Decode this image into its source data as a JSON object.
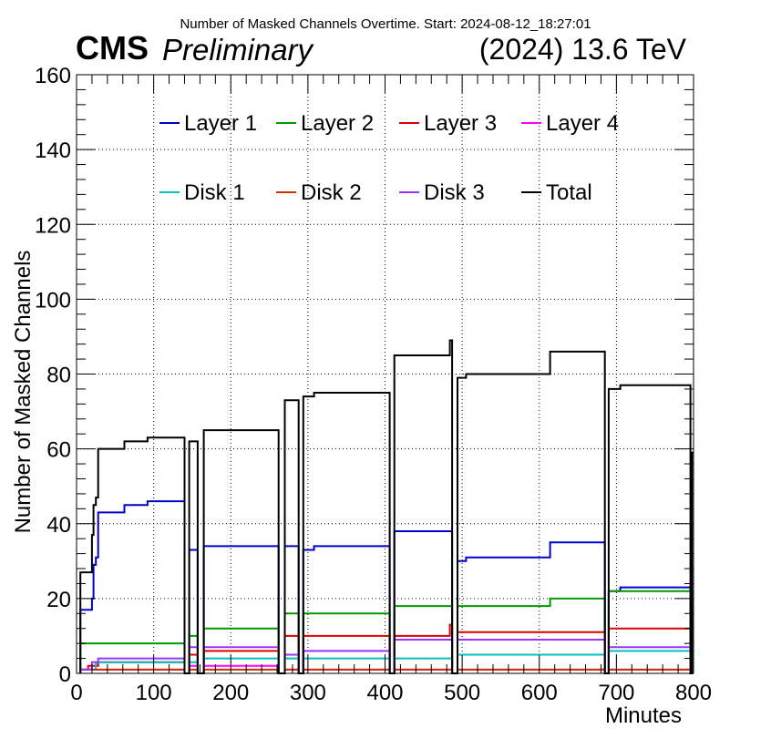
{
  "header": {
    "title": "Number of Masked Channels Overtime. Start: 2024-08-12_18:27:01",
    "experiment": "CMS",
    "status": "Preliminary",
    "energy": "(2024) 13.6 TeV"
  },
  "chart_data": {
    "type": "line",
    "title": "Number of Masked Channels Overtime. Start: 2024-08-12_18:27:01",
    "xlabel": "Minutes",
    "ylabel": "Number of Masked Channels",
    "xlim": [
      0,
      800
    ],
    "ylim": [
      0,
      160
    ],
    "xticks": [
      0,
      100,
      200,
      300,
      400,
      500,
      600,
      700,
      800
    ],
    "yticks": [
      0,
      20,
      40,
      60,
      80,
      100,
      120,
      140,
      160
    ],
    "grid": true,
    "legend_position": "top",
    "series": [
      {
        "name": "Layer 1",
        "color": "#0000cc",
        "points": [
          [
            5,
            0
          ],
          [
            5,
            17
          ],
          [
            20,
            17
          ],
          [
            20,
            20
          ],
          [
            22,
            20
          ],
          [
            22,
            29
          ],
          [
            25,
            29
          ],
          [
            25,
            31
          ],
          [
            28,
            31
          ],
          [
            28,
            43
          ],
          [
            62,
            43
          ],
          [
            62,
            45
          ],
          [
            92,
            45
          ],
          [
            92,
            46
          ],
          [
            140,
            46
          ],
          [
            140,
            0
          ],
          [
            146,
            0
          ],
          [
            146,
            33
          ],
          [
            157,
            33
          ],
          [
            157,
            0
          ],
          [
            165,
            0
          ],
          [
            165,
            34
          ],
          [
            262,
            34
          ],
          [
            262,
            0
          ],
          [
            270,
            0
          ],
          [
            270,
            34
          ],
          [
            288,
            34
          ],
          [
            288,
            0
          ],
          [
            294,
            0
          ],
          [
            294,
            33
          ],
          [
            308,
            33
          ],
          [
            308,
            34
          ],
          [
            406,
            34
          ],
          [
            406,
            0
          ],
          [
            412,
            0
          ],
          [
            412,
            38
          ],
          [
            487,
            38
          ],
          [
            487,
            0
          ],
          [
            494,
            0
          ],
          [
            494,
            30
          ],
          [
            505,
            30
          ],
          [
            505,
            31
          ],
          [
            614,
            31
          ],
          [
            614,
            35
          ],
          [
            685,
            35
          ],
          [
            685,
            0
          ],
          [
            690,
            0
          ],
          [
            690,
            22
          ],
          [
            705,
            22
          ],
          [
            705,
            23
          ],
          [
            796,
            23
          ],
          [
            796,
            0
          ]
        ]
      },
      {
        "name": "Layer 2",
        "color": "#009900",
        "points": [
          [
            5,
            0
          ],
          [
            5,
            8
          ],
          [
            140,
            8
          ],
          [
            140,
            0
          ],
          [
            146,
            0
          ],
          [
            146,
            10
          ],
          [
            157,
            10
          ],
          [
            157,
            0
          ],
          [
            165,
            0
          ],
          [
            165,
            12
          ],
          [
            262,
            12
          ],
          [
            262,
            0
          ],
          [
            270,
            0
          ],
          [
            270,
            16
          ],
          [
            288,
            16
          ],
          [
            288,
            0
          ],
          [
            294,
            0
          ],
          [
            294,
            16
          ],
          [
            406,
            16
          ],
          [
            406,
            0
          ],
          [
            412,
            0
          ],
          [
            412,
            18
          ],
          [
            487,
            18
          ],
          [
            487,
            0
          ],
          [
            494,
            0
          ],
          [
            494,
            18
          ],
          [
            614,
            18
          ],
          [
            614,
            20
          ],
          [
            685,
            20
          ],
          [
            685,
            0
          ],
          [
            690,
            0
          ],
          [
            690,
            22
          ],
          [
            796,
            22
          ],
          [
            796,
            0
          ],
          [
            798,
            0
          ],
          [
            798,
            22
          ],
          [
            800,
            22
          ]
        ]
      },
      {
        "name": "Layer 3",
        "color": "#dd0000",
        "points": [
          [
            5,
            0
          ],
          [
            5,
            1
          ],
          [
            15,
            1
          ],
          [
            15,
            2
          ],
          [
            28,
            2
          ],
          [
            28,
            3
          ],
          [
            140,
            3
          ],
          [
            140,
            0
          ],
          [
            146,
            0
          ],
          [
            146,
            5
          ],
          [
            157,
            5
          ],
          [
            157,
            0
          ],
          [
            165,
            0
          ],
          [
            165,
            6
          ],
          [
            262,
            6
          ],
          [
            262,
            0
          ],
          [
            270,
            0
          ],
          [
            270,
            10
          ],
          [
            288,
            10
          ],
          [
            288,
            0
          ],
          [
            294,
            0
          ],
          [
            294,
            10
          ],
          [
            406,
            10
          ],
          [
            406,
            0
          ],
          [
            412,
            0
          ],
          [
            412,
            10
          ],
          [
            484,
            10
          ],
          [
            484,
            13
          ],
          [
            487,
            13
          ],
          [
            487,
            0
          ],
          [
            494,
            0
          ],
          [
            494,
            11
          ],
          [
            685,
            11
          ],
          [
            685,
            0
          ],
          [
            690,
            0
          ],
          [
            690,
            12
          ],
          [
            796,
            12
          ],
          [
            796,
            0
          ]
        ]
      },
      {
        "name": "Layer 4",
        "color": "#ff00ff",
        "points": [
          [
            5,
            0
          ],
          [
            5,
            1
          ],
          [
            140,
            1
          ],
          [
            140,
            0
          ],
          [
            146,
            0
          ],
          [
            146,
            2
          ],
          [
            157,
            2
          ],
          [
            157,
            0
          ],
          [
            165,
            0
          ],
          [
            165,
            2
          ],
          [
            262,
            2
          ],
          [
            262,
            0
          ],
          [
            270,
            0
          ],
          [
            270,
            1
          ],
          [
            288,
            1
          ],
          [
            288,
            0
          ],
          [
            294,
            0
          ],
          [
            294,
            1
          ],
          [
            406,
            1
          ],
          [
            406,
            0
          ],
          [
            412,
            0
          ],
          [
            412,
            1
          ],
          [
            487,
            1
          ],
          [
            487,
            0
          ],
          [
            494,
            0
          ],
          [
            494,
            1
          ],
          [
            685,
            1
          ],
          [
            685,
            0
          ],
          [
            690,
            0
          ],
          [
            690,
            1
          ],
          [
            796,
            1
          ],
          [
            796,
            0
          ]
        ]
      },
      {
        "name": "Disk 1",
        "color": "#00c0c0",
        "points": [
          [
            5,
            0
          ],
          [
            5,
            1
          ],
          [
            25,
            1
          ],
          [
            25,
            3
          ],
          [
            140,
            3
          ],
          [
            140,
            0
          ],
          [
            146,
            0
          ],
          [
            146,
            3
          ],
          [
            157,
            3
          ],
          [
            157,
            0
          ],
          [
            165,
            0
          ],
          [
            165,
            4
          ],
          [
            262,
            4
          ],
          [
            262,
            0
          ],
          [
            270,
            0
          ],
          [
            270,
            4
          ],
          [
            288,
            4
          ],
          [
            288,
            0
          ],
          [
            294,
            0
          ],
          [
            294,
            4
          ],
          [
            406,
            4
          ],
          [
            406,
            0
          ],
          [
            412,
            0
          ],
          [
            412,
            4
          ],
          [
            487,
            4
          ],
          [
            487,
            0
          ],
          [
            494,
            0
          ],
          [
            494,
            5
          ],
          [
            685,
            5
          ],
          [
            685,
            0
          ],
          [
            690,
            0
          ],
          [
            690,
            6
          ],
          [
            796,
            6
          ],
          [
            796,
            0
          ]
        ]
      },
      {
        "name": "Disk 2",
        "color": "#cc3300",
        "points": [
          [
            5,
            0
          ],
          [
            5,
            1
          ],
          [
            140,
            1
          ],
          [
            140,
            0
          ],
          [
            146,
            0
          ],
          [
            146,
            1
          ],
          [
            157,
            1
          ],
          [
            157,
            0
          ],
          [
            165,
            0
          ],
          [
            165,
            1
          ],
          [
            262,
            1
          ],
          [
            262,
            0
          ],
          [
            270,
            0
          ],
          [
            270,
            1
          ],
          [
            288,
            1
          ],
          [
            288,
            0
          ],
          [
            294,
            0
          ],
          [
            294,
            1
          ],
          [
            406,
            1
          ],
          [
            406,
            0
          ],
          [
            412,
            0
          ],
          [
            412,
            1
          ],
          [
            487,
            1
          ],
          [
            487,
            0
          ],
          [
            494,
            0
          ],
          [
            494,
            1
          ],
          [
            685,
            1
          ],
          [
            685,
            0
          ],
          [
            690,
            0
          ],
          [
            690,
            1
          ],
          [
            796,
            1
          ],
          [
            796,
            0
          ]
        ]
      },
      {
        "name": "Disk 3",
        "color": "#9933ff",
        "points": [
          [
            5,
            0
          ],
          [
            5,
            1
          ],
          [
            20,
            1
          ],
          [
            20,
            3
          ],
          [
            28,
            3
          ],
          [
            28,
            4
          ],
          [
            140,
            4
          ],
          [
            140,
            0
          ],
          [
            146,
            0
          ],
          [
            146,
            7
          ],
          [
            157,
            7
          ],
          [
            157,
            0
          ],
          [
            165,
            0
          ],
          [
            165,
            7
          ],
          [
            262,
            7
          ],
          [
            262,
            0
          ],
          [
            270,
            0
          ],
          [
            270,
            5
          ],
          [
            288,
            5
          ],
          [
            288,
            0
          ],
          [
            294,
            0
          ],
          [
            294,
            6
          ],
          [
            406,
            6
          ],
          [
            406,
            0
          ],
          [
            412,
            0
          ],
          [
            412,
            9
          ],
          [
            487,
            9
          ],
          [
            487,
            0
          ],
          [
            494,
            0
          ],
          [
            494,
            9
          ],
          [
            685,
            9
          ],
          [
            685,
            0
          ],
          [
            690,
            0
          ],
          [
            690,
            7
          ],
          [
            796,
            7
          ],
          [
            796,
            0
          ]
        ]
      },
      {
        "name": "Total",
        "color": "#000000",
        "points": [
          [
            5,
            0
          ],
          [
            5,
            27
          ],
          [
            20,
            27
          ],
          [
            20,
            37
          ],
          [
            22,
            37
          ],
          [
            22,
            45
          ],
          [
            25,
            45
          ],
          [
            25,
            47
          ],
          [
            28,
            47
          ],
          [
            28,
            60
          ],
          [
            62,
            60
          ],
          [
            62,
            62
          ],
          [
            92,
            62
          ],
          [
            92,
            63
          ],
          [
            140,
            63
          ],
          [
            140,
            0
          ],
          [
            146,
            0
          ],
          [
            146,
            62
          ],
          [
            157,
            62
          ],
          [
            157,
            0
          ],
          [
            165,
            0
          ],
          [
            165,
            65
          ],
          [
            262,
            65
          ],
          [
            262,
            0
          ],
          [
            270,
            0
          ],
          [
            270,
            73
          ],
          [
            288,
            73
          ],
          [
            288,
            0
          ],
          [
            294,
            0
          ],
          [
            294,
            74
          ],
          [
            308,
            74
          ],
          [
            308,
            75
          ],
          [
            406,
            75
          ],
          [
            406,
            0
          ],
          [
            412,
            0
          ],
          [
            412,
            85
          ],
          [
            484,
            85
          ],
          [
            484,
            89
          ],
          [
            487,
            89
          ],
          [
            487,
            0
          ],
          [
            494,
            0
          ],
          [
            494,
            79
          ],
          [
            505,
            79
          ],
          [
            505,
            80
          ],
          [
            614,
            80
          ],
          [
            614,
            86
          ],
          [
            685,
            86
          ],
          [
            685,
            0
          ],
          [
            690,
            0
          ],
          [
            690,
            76
          ],
          [
            705,
            76
          ],
          [
            705,
            77
          ],
          [
            796,
            77
          ],
          [
            796,
            0
          ],
          [
            798,
            0
          ],
          [
            798,
            59
          ],
          [
            800,
            59
          ]
        ]
      }
    ]
  }
}
